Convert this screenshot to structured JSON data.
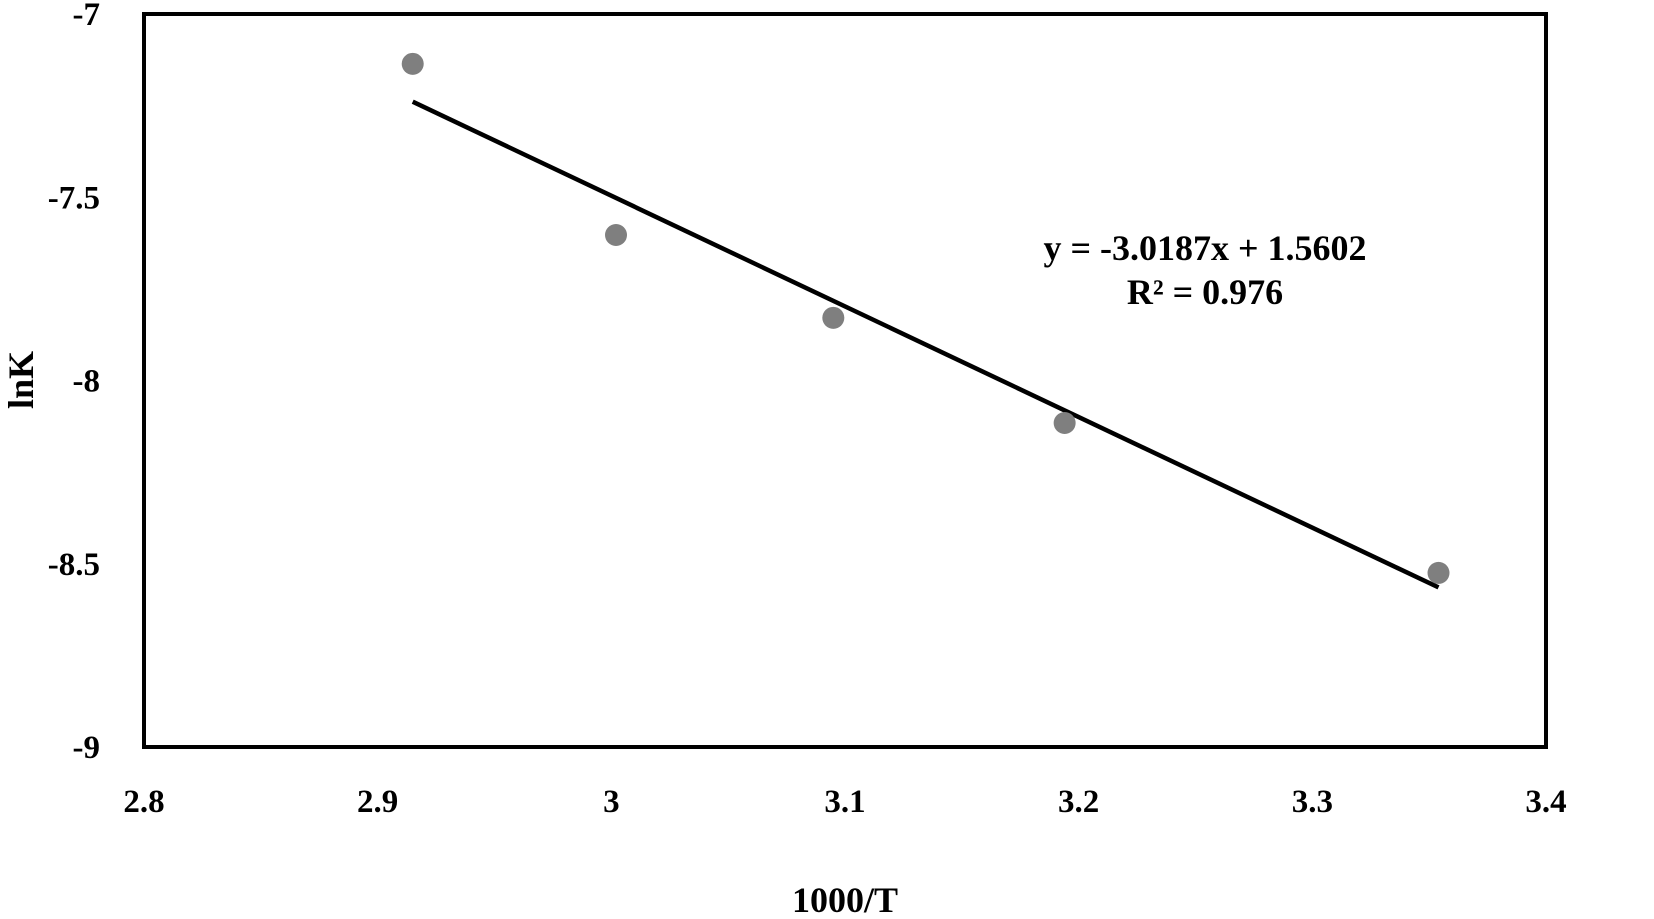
{
  "chart_data": {
    "type": "scatter",
    "title": "",
    "xlabel": "1000/T",
    "ylabel": "lnK",
    "xlim": [
      2.8,
      3.4
    ],
    "ylim": [
      -9,
      -7
    ],
    "x_ticks": [
      2.8,
      2.9,
      3.0,
      3.1,
      3.2,
      3.3,
      3.4
    ],
    "x_tick_labels": [
      "2.8",
      "2.9",
      "3",
      "3.1",
      "3.2",
      "3.3",
      "3.4"
    ],
    "y_ticks": [
      -7,
      -7.5,
      -8,
      -8.5,
      -9
    ],
    "y_tick_labels": [
      "-7",
      "-7.5",
      "-8",
      "-8.5",
      "-9"
    ],
    "grid": false,
    "legend": null,
    "series": [
      {
        "name": "lnK",
        "marker": "circle",
        "color": "#7f7f7f",
        "x": [
          2.915,
          3.002,
          3.095,
          3.194,
          3.354
        ],
        "y": [
          -7.136,
          -7.603,
          -7.829,
          -8.116,
          -8.525
        ]
      }
    ],
    "trendline": {
      "type": "linear",
      "slope": -3.0187,
      "intercept": 1.5602,
      "r2": 0.976,
      "x_range": [
        2.915,
        3.354
      ],
      "color": "#000000"
    },
    "annotations": [
      "y = -3.0187x + 1.5602",
      "R² = 0.976"
    ]
  },
  "labels": {
    "equation": "y = -3.0187x + 1.5602",
    "r_squared": "R² = 0.976",
    "xlabel": "1000/T",
    "ylabel": "lnK"
  },
  "colors": {
    "marker": "#7f7f7f",
    "trendline": "#000000",
    "frame": "#000000"
  }
}
